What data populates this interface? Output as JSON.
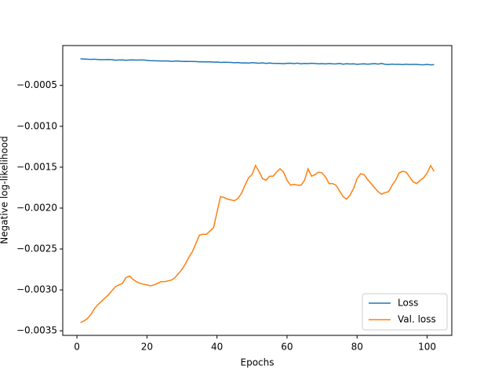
{
  "chart_data": {
    "type": "line",
    "xlabel": "Epochs",
    "ylabel": "Negative log-likelihood",
    "x": [
      1,
      2,
      3,
      4,
      5,
      6,
      7,
      8,
      9,
      10,
      11,
      12,
      13,
      14,
      15,
      16,
      17,
      18,
      19,
      20,
      21,
      22,
      23,
      24,
      25,
      26,
      27,
      28,
      29,
      30,
      31,
      32,
      33,
      34,
      35,
      36,
      37,
      38,
      39,
      40,
      41,
      42,
      43,
      44,
      45,
      46,
      47,
      48,
      49,
      50,
      51,
      52,
      53,
      54,
      55,
      56,
      57,
      58,
      59,
      60,
      61,
      62,
      63,
      64,
      65,
      66,
      67,
      68,
      69,
      70,
      71,
      72,
      73,
      74,
      75,
      76,
      77,
      78,
      79,
      80,
      81,
      82,
      83,
      84,
      85,
      86,
      87,
      88,
      89,
      90,
      91,
      92,
      93,
      94,
      95,
      96,
      97,
      98,
      99,
      100,
      101,
      102
    ],
    "series": [
      {
        "name": "Loss",
        "color": "#1f77b4",
        "values": [
          -0.000175,
          -0.000177,
          -0.00018,
          -0.000182,
          -0.00018,
          -0.000184,
          -0.000186,
          -0.000185,
          -0.000183,
          -0.000186,
          -0.000192,
          -0.00019,
          -0.000188,
          -0.000193,
          -0.00019,
          -0.000188,
          -0.000191,
          -0.00019,
          -0.000189,
          -0.000194,
          -0.000198,
          -0.000199,
          -0.0002,
          -0.000201,
          -0.000202,
          -0.000201,
          -0.000206,
          -0.000203,
          -0.000202,
          -0.000207,
          -0.000206,
          -0.000208,
          -0.000207,
          -0.000209,
          -0.000212,
          -0.000211,
          -0.000214,
          -0.000211,
          -0.000216,
          -0.000215,
          -0.000219,
          -0.000217,
          -0.000218,
          -0.00022,
          -0.000223,
          -0.000221,
          -0.000226,
          -0.000224,
          -0.000228,
          -0.000222,
          -0.000226,
          -0.000229,
          -0.000224,
          -0.000231,
          -0.000227,
          -0.00023,
          -0.000232,
          -0.000231,
          -0.000235,
          -0.00023,
          -0.000229,
          -0.000234,
          -0.000228,
          -0.000236,
          -0.000231,
          -0.000234,
          -0.000229,
          -0.000233,
          -0.000236,
          -0.000234,
          -0.000237,
          -0.000233,
          -0.000236,
          -0.000238,
          -0.000232,
          -0.000241,
          -0.000235,
          -0.000239,
          -0.000236,
          -0.000242,
          -0.000239,
          -0.000236,
          -0.000241,
          -0.000237,
          -0.000234,
          -0.00024,
          -0.000232,
          -0.000242,
          -0.000245,
          -0.00024,
          -0.000244,
          -0.000242,
          -0.000246,
          -0.000241,
          -0.000245,
          -0.000243,
          -0.000244,
          -0.000247,
          -0.000248,
          -0.000244,
          -0.000249,
          -0.000246
        ]
      },
      {
        "name": "Val. loss",
        "color": "#ff7f0e",
        "values": [
          -0.0034,
          -0.00338,
          -0.00335,
          -0.0033,
          -0.00323,
          -0.00318,
          -0.00314,
          -0.0031,
          -0.00306,
          -0.00301,
          -0.00296,
          -0.00294,
          -0.00292,
          -0.00285,
          -0.00283,
          -0.00287,
          -0.0029,
          -0.00292,
          -0.00293,
          -0.00294,
          -0.00295,
          -0.00294,
          -0.00292,
          -0.0029,
          -0.0029,
          -0.00289,
          -0.00288,
          -0.00285,
          -0.0028,
          -0.00275,
          -0.00268,
          -0.0026,
          -0.00253,
          -0.00243,
          -0.00233,
          -0.00232,
          -0.00232,
          -0.00228,
          -0.00224,
          -0.00205,
          -0.00186,
          -0.00187,
          -0.00189,
          -0.0019,
          -0.00191,
          -0.00188,
          -0.00182,
          -0.00172,
          -0.00163,
          -0.00159,
          -0.00148,
          -0.00155,
          -0.00164,
          -0.00166,
          -0.00161,
          -0.00161,
          -0.00156,
          -0.00152,
          -0.00156,
          -0.00166,
          -0.00172,
          -0.00171,
          -0.00172,
          -0.00172,
          -0.00166,
          -0.00152,
          -0.00161,
          -0.00159,
          -0.00156,
          -0.00157,
          -0.00162,
          -0.0017,
          -0.0017,
          -0.00172,
          -0.00179,
          -0.00186,
          -0.00189,
          -0.00184,
          -0.00176,
          -0.00164,
          -0.00158,
          -0.00159,
          -0.00165,
          -0.0017,
          -0.00175,
          -0.0018,
          -0.00183,
          -0.00181,
          -0.0018,
          -0.00172,
          -0.00166,
          -0.00157,
          -0.00155,
          -0.00156,
          -0.00162,
          -0.00168,
          -0.0017,
          -0.00166,
          -0.00163,
          -0.00157,
          -0.00148,
          -0.00155
        ]
      }
    ],
    "xlim": [
      -4.05,
      107.05
    ],
    "xticks": [
      0,
      20,
      40,
      60,
      80,
      100
    ],
    "ylim": [
      -0.003556,
      -1.3e-05
    ],
    "yticks": [
      {
        "value": -0.0005,
        "label": "−0.0005"
      },
      {
        "value": -0.001,
        "label": "−0.0010"
      },
      {
        "value": -0.0015,
        "label": "−0.0015"
      },
      {
        "value": -0.002,
        "label": "−0.0020"
      },
      {
        "value": -0.0025,
        "label": "−0.0025"
      },
      {
        "value": -0.003,
        "label": "−0.0030"
      },
      {
        "value": -0.0035,
        "label": "−0.0035"
      }
    ],
    "grid": false,
    "legend": "lower right"
  }
}
